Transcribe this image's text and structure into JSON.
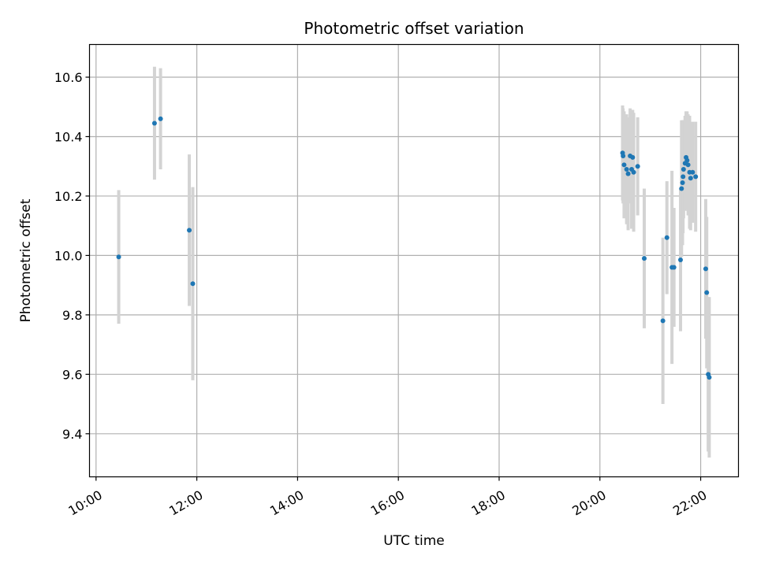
{
  "chart_data": {
    "type": "scatter",
    "title": "Photometric offset variation",
    "xlabel": "UTC time",
    "ylabel": "Photometric offset",
    "x_unit": "hours UTC",
    "xlim": [
      9.87,
      22.75
    ],
    "ylim": [
      9.255,
      10.71
    ],
    "grid": true,
    "x_ticks": [
      {
        "value": 10,
        "label": "10:00"
      },
      {
        "value": 12,
        "label": "12:00"
      },
      {
        "value": 14,
        "label": "14:00"
      },
      {
        "value": 16,
        "label": "16:00"
      },
      {
        "value": 18,
        "label": "18:00"
      },
      {
        "value": 20,
        "label": "20:00"
      },
      {
        "value": 22,
        "label": "22:00"
      }
    ],
    "y_ticks": [
      {
        "value": 9.4,
        "label": "9.4"
      },
      {
        "value": 9.6,
        "label": "9.6"
      },
      {
        "value": 9.8,
        "label": "9.8"
      },
      {
        "value": 10.0,
        "label": "10.0"
      },
      {
        "value": 10.2,
        "label": "10.2"
      },
      {
        "value": 10.4,
        "label": "10.4"
      },
      {
        "value": 10.6,
        "label": "10.6"
      }
    ],
    "series": [
      {
        "marker_color": "#1f77b4",
        "errorbar_color": "#d3d3d3",
        "points": [
          {
            "x": 10.45,
            "y": 9.995,
            "err": 0.225
          },
          {
            "x": 11.16,
            "y": 10.445,
            "err": 0.19
          },
          {
            "x": 11.28,
            "y": 10.46,
            "err": 0.17
          },
          {
            "x": 11.85,
            "y": 10.085,
            "err": 0.255
          },
          {
            "x": 11.92,
            "y": 9.905,
            "err": 0.325
          },
          {
            "x": 20.45,
            "y": 10.345,
            "err": 0.16
          },
          {
            "x": 20.46,
            "y": 10.335,
            "err": 0.16
          },
          {
            "x": 20.48,
            "y": 10.305,
            "err": 0.18
          },
          {
            "x": 20.53,
            "y": 10.29,
            "err": 0.185
          },
          {
            "x": 20.56,
            "y": 10.275,
            "err": 0.19
          },
          {
            "x": 20.6,
            "y": 10.335,
            "err": 0.16
          },
          {
            "x": 20.63,
            "y": 10.29,
            "err": 0.2
          },
          {
            "x": 20.65,
            "y": 10.33,
            "err": 0.16
          },
          {
            "x": 20.67,
            "y": 10.28,
            "err": 0.2
          },
          {
            "x": 20.75,
            "y": 10.3,
            "err": 0.165
          },
          {
            "x": 20.88,
            "y": 9.99,
            "err": 0.235
          },
          {
            "x": 21.25,
            "y": 9.78,
            "err": 0.28
          },
          {
            "x": 21.33,
            "y": 10.06,
            "err": 0.19
          },
          {
            "x": 21.43,
            "y": 9.96,
            "err": 0.325
          },
          {
            "x": 21.47,
            "y": 9.96,
            "err": 0.2
          },
          {
            "x": 21.6,
            "y": 9.985,
            "err": 0.24
          },
          {
            "x": 21.62,
            "y": 10.225,
            "err": 0.23
          },
          {
            "x": 21.64,
            "y": 10.245,
            "err": 0.21
          },
          {
            "x": 21.65,
            "y": 10.265,
            "err": 0.19
          },
          {
            "x": 21.66,
            "y": 10.29,
            "err": 0.165
          },
          {
            "x": 21.69,
            "y": 10.31,
            "err": 0.16
          },
          {
            "x": 21.71,
            "y": 10.33,
            "err": 0.155
          },
          {
            "x": 21.73,
            "y": 10.32,
            "err": 0.165
          },
          {
            "x": 21.75,
            "y": 10.305,
            "err": 0.17
          },
          {
            "x": 21.78,
            "y": 10.28,
            "err": 0.19
          },
          {
            "x": 21.8,
            "y": 10.26,
            "err": 0.175
          },
          {
            "x": 21.84,
            "y": 10.28,
            "err": 0.17
          },
          {
            "x": 21.9,
            "y": 10.265,
            "err": 0.185
          },
          {
            "x": 22.1,
            "y": 9.955,
            "err": 0.235
          },
          {
            "x": 22.12,
            "y": 9.875,
            "err": 0.255
          },
          {
            "x": 22.15,
            "y": 9.6,
            "err": 0.26
          },
          {
            "x": 22.17,
            "y": 9.59,
            "err": 0.27
          }
        ]
      }
    ]
  }
}
